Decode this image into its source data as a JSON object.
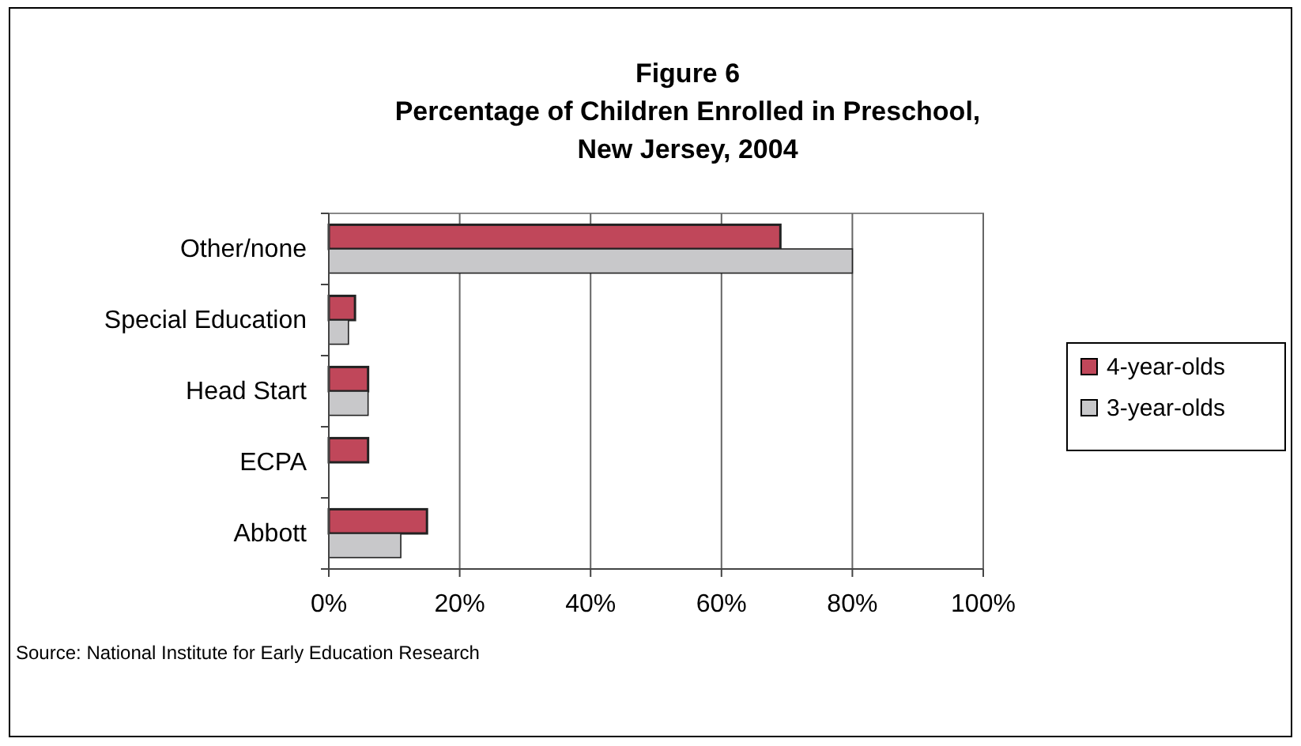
{
  "chart_data": {
    "type": "bar",
    "orientation": "horizontal",
    "title": "Figure 6\nPercentage of Children Enrolled in Preschool,\nNew Jersey, 2004",
    "categories": [
      "Other/none",
      "Special Education",
      "Head Start",
      "ECPA",
      "Abbott"
    ],
    "series": [
      {
        "name": "4-year-olds",
        "color": "#c0475a",
        "values": [
          69,
          4,
          6,
          6,
          15
        ]
      },
      {
        "name": "3-year-olds",
        "color": "#c8c8ca",
        "values": [
          80,
          3,
          6,
          null,
          11
        ]
      }
    ],
    "xlim": [
      0,
      100
    ],
    "xticks": [
      {
        "value": 0,
        "label": "0%"
      },
      {
        "value": 20,
        "label": "20%"
      },
      {
        "value": 40,
        "label": "40%"
      },
      {
        "value": 60,
        "label": "60%"
      },
      {
        "value": 80,
        "label": "80%"
      },
      {
        "value": 100,
        "label": "100%"
      }
    ],
    "grid": "x",
    "legend": "right",
    "annotations": [
      "Source: National Institute for Early Education Research"
    ]
  }
}
